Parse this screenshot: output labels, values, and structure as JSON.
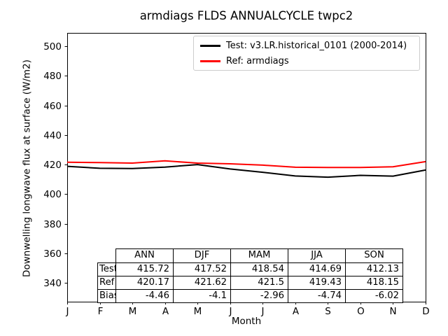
{
  "title": "armdiags FLDS ANNUALCYCLE twpc2",
  "axes": {
    "xlabel": "Month",
    "ylabel": "Downwelling longwave flux at surface (W/m2)",
    "xtick_labels": [
      "J",
      "F",
      "M",
      "A",
      "M",
      "J",
      "J",
      "A",
      "S",
      "O",
      "N",
      "D"
    ],
    "ytick_labels": [
      "340",
      "360",
      "380",
      "400",
      "420",
      "440",
      "460",
      "480",
      "500"
    ]
  },
  "legend": {
    "items": [
      {
        "label": "Test: v3.LR.historical_0101 (2000-2014)",
        "color": "#000000"
      },
      {
        "label": "Ref: armdiags",
        "color": "#ff0000"
      }
    ]
  },
  "chart_data": {
    "type": "line",
    "title": "armdiags FLDS ANNUALCYCLE twpc2",
    "xlabel": "Month",
    "ylabel": "Downwelling longwave flux at surface (W/m2)",
    "categories": [
      "J",
      "F",
      "M",
      "A",
      "M",
      "J",
      "J",
      "A",
      "S",
      "O",
      "N",
      "D"
    ],
    "series": [
      {
        "name": "Test: v3.LR.historical_0101 (2000-2014)",
        "color": "#000000",
        "values": [
          418.8,
          417.5,
          417.3,
          418.3,
          420.0,
          417.0,
          414.8,
          412.3,
          411.5,
          412.7,
          412.2,
          416.3
        ]
      },
      {
        "name": "Ref: armdiags",
        "color": "#ff0000",
        "values": [
          421.6,
          421.3,
          421.0,
          422.5,
          421.0,
          420.5,
          419.6,
          418.2,
          418.0,
          418.0,
          418.5,
          422.0
        ]
      }
    ],
    "yticks": [
      340,
      360,
      380,
      400,
      420,
      440,
      460,
      480,
      500
    ],
    "ylim": [
      327.3,
      509.0
    ],
    "grid": false,
    "legend_position": "upper center"
  },
  "table": {
    "columns": [
      "ANN",
      "DJF",
      "MAM",
      "JJA",
      "SON"
    ],
    "rows": [
      {
        "label": "Test",
        "values": [
          "415.72",
          "417.52",
          "418.54",
          "414.69",
          "412.13"
        ]
      },
      {
        "label": "Ref",
        "values": [
          "420.17",
          "421.62",
          "421.5",
          "419.43",
          "418.15"
        ]
      },
      {
        "label": "Bias",
        "values": [
          "-4.46",
          "-4.1",
          "-2.96",
          "-4.74",
          "-6.02"
        ]
      }
    ]
  }
}
